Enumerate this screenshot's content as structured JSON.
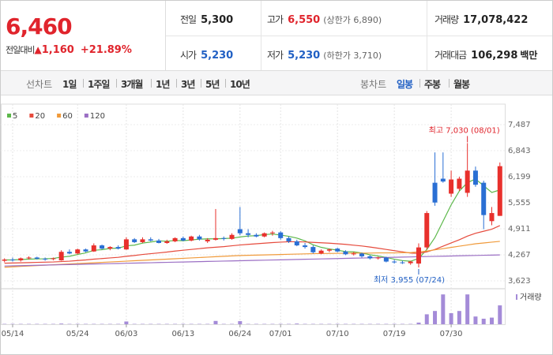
{
  "quote": {
    "price": "6,460",
    "change_label": "전일대비",
    "change": "1,160",
    "change_pct": "+21.89%"
  },
  "stats": [
    [
      {
        "label": "전일",
        "value": "5,300"
      },
      {
        "label": "고가",
        "value": "6,550",
        "note": "(상한가 6,890)"
      },
      {
        "label": "거래량",
        "value": "17,078,422"
      }
    ],
    [
      {
        "label": "시가",
        "value": "5,230"
      },
      {
        "label": "저가",
        "value": "5,230",
        "note": "(하한가 3,710)"
      },
      {
        "label": "거래대금",
        "value": "106,298",
        "unit": "백만"
      }
    ]
  ],
  "tabs": {
    "line_label": "선차트",
    "line_options": [
      "1일",
      "1주일",
      "3개월",
      "1년",
      "3년",
      "5년",
      "10년"
    ],
    "candle_label": "봉차트",
    "candle_options": [
      "일봉",
      "주봉",
      "월봉"
    ],
    "selected": "일봉"
  },
  "chart_data": {
    "type": "candlestick",
    "categories": [
      null,
      "05/14",
      null,
      null,
      null,
      null,
      null,
      null,
      null,
      "05/24",
      null,
      null,
      null,
      null,
      null,
      "06/03",
      null,
      null,
      null,
      null,
      null,
      null,
      "06/13",
      null,
      null,
      null,
      null,
      null,
      null,
      "06/24",
      null,
      null,
      null,
      null,
      "07/01",
      null,
      null,
      null,
      null,
      null,
      null,
      "07/10",
      null,
      null,
      null,
      null,
      null,
      null,
      "07/19",
      null,
      null,
      null,
      null,
      null,
      null,
      "07/30",
      null,
      null,
      null,
      null,
      null,
      null
    ],
    "open": [
      4120,
      4150,
      4130,
      4180,
      4200,
      4170,
      4160,
      4130,
      4340,
      4300,
      4400,
      4350,
      4500,
      4420,
      4460,
      4400,
      4650,
      4580,
      4650,
      4620,
      4560,
      4600,
      4680,
      4620,
      4720,
      4600,
      4640,
      4680,
      4660,
      4900,
      4800,
      4760,
      4720,
      4800,
      4820,
      4680,
      4600,
      4500,
      4460,
      4300,
      4370,
      4420,
      4350,
      4280,
      4300,
      4230,
      4180,
      4200,
      4100,
      4080,
      4060,
      4050,
      4450,
      6050,
      6150,
      5780,
      5900,
      5800,
      6350,
      6050,
      5100,
      5230
    ],
    "high": [
      4180,
      4200,
      4200,
      4230,
      4220,
      4200,
      4200,
      4380,
      4400,
      4420,
      4420,
      4550,
      4520,
      4480,
      4500,
      4700,
      4680,
      4700,
      4700,
      4660,
      4640,
      4700,
      4720,
      4740,
      4760,
      4680,
      5400,
      4720,
      4800,
      5450,
      4900,
      4800,
      4820,
      4860,
      4850,
      4720,
      4640,
      4560,
      4500,
      4400,
      4420,
      4440,
      4380,
      4340,
      4320,
      4260,
      4220,
      4220,
      4140,
      4120,
      4120,
      4550,
      5350,
      6800,
      6800,
      6350,
      6200,
      7030,
      6450,
      6100,
      5450,
      6550
    ],
    "low": [
      4080,
      4100,
      4100,
      4150,
      4150,
      4120,
      4130,
      4120,
      4280,
      4280,
      4330,
      4340,
      4400,
      4380,
      4400,
      4390,
      4560,
      4560,
      4600,
      4550,
      4540,
      4580,
      4600,
      4600,
      4620,
      4560,
      4620,
      4620,
      4640,
      4750,
      4700,
      4700,
      4700,
      4740,
      4640,
      4560,
      4480,
      4420,
      4300,
      4280,
      4330,
      4330,
      4260,
      4250,
      4200,
      4150,
      4150,
      4080,
      4050,
      4040,
      4020,
      3955,
      4400,
      5480,
      6050,
      5700,
      5850,
      5700,
      5950,
      4900,
      5000,
      5230
    ],
    "close": [
      4150,
      4130,
      4180,
      4200,
      4170,
      4160,
      4180,
      4340,
      4300,
      4400,
      4350,
      4500,
      4420,
      4460,
      4420,
      4650,
      4580,
      4650,
      4620,
      4560,
      4600,
      4680,
      4620,
      4720,
      4650,
      4640,
      4680,
      4660,
      4760,
      4800,
      4760,
      4720,
      4800,
      4820,
      4680,
      4600,
      4500,
      4460,
      4330,
      4370,
      4400,
      4350,
      4280,
      4300,
      4230,
      4180,
      4200,
      4100,
      4080,
      4060,
      4100,
      4450,
      5300,
      5560,
      6080,
      6130,
      6150,
      6350,
      6000,
      5250,
      5300,
      6460
    ],
    "up_color": "#e8302c",
    "down_color": "#2a6fd4",
    "series": [
      {
        "name": "5",
        "color": "#5cb84a",
        "values": [
          4140,
          4140,
          4150,
          4160,
          4166,
          4168,
          4178,
          4210,
          4230,
          4276,
          4314,
          4378,
          4394,
          4426,
          4430,
          4490,
          4506,
          4556,
          4584,
          4612,
          4602,
          4622,
          4616,
          4636,
          4654,
          4662,
          4662,
          4670,
          4678,
          4708,
          4732,
          4740,
          4768,
          4780,
          4756,
          4724,
          4680,
          4612,
          4514,
          4452,
          4412,
          4382,
          4346,
          4340,
          4312,
          4268,
          4238,
          4202,
          4158,
          4124,
          4108,
          4178,
          4398,
          4694,
          5098,
          5504,
          5844,
          6054,
          6142,
          5976,
          5810,
          5872
        ]
      },
      {
        "name": "20",
        "color": "#e64a3c",
        "values": [
          4060,
          4065,
          4070,
          4075,
          4080,
          4085,
          4090,
          4100,
          4110,
          4125,
          4140,
          4160,
          4175,
          4190,
          4205,
          4230,
          4250,
          4275,
          4295,
          4315,
          4335,
          4360,
          4380,
          4400,
          4420,
          4440,
          4455,
          4470,
          4490,
          4510,
          4525,
          4540,
          4555,
          4570,
          4580,
          4590,
          4590,
          4585,
          4575,
          4565,
          4555,
          4540,
          4525,
          4505,
          4485,
          4460,
          4430,
          4400,
          4370,
          4340,
          4310,
          4300,
          4340,
          4400,
          4480,
          4560,
          4640,
          4730,
          4800,
          4850,
          4900,
          4990
        ]
      },
      {
        "name": "60",
        "color": "#f09a3a",
        "values": [
          3960,
          3970,
          3980,
          3990,
          4000,
          4010,
          4020,
          4030,
          4040,
          4050,
          4060,
          4070,
          4080,
          4090,
          4100,
          4110,
          4120,
          4130,
          4140,
          4150,
          4160,
          4170,
          4180,
          4190,
          4200,
          4210,
          4220,
          4230,
          4240,
          4250,
          4255,
          4260,
          4265,
          4270,
          4275,
          4280,
          4285,
          4290,
          4295,
          4300,
          4300,
          4305,
          4305,
          4310,
          4310,
          4310,
          4315,
          4315,
          4315,
          4320,
          4320,
          4340,
          4360,
          4390,
          4420,
          4450,
          4480,
          4510,
          4540,
          4560,
          4580,
          4600
        ]
      },
      {
        "name": "120",
        "color": "#9b6fc4",
        "values": [
          3990,
          3995,
          3999,
          4004,
          4008,
          4013,
          4017,
          4022,
          4026,
          4031,
          4035,
          4040,
          4044,
          4049,
          4053,
          4058,
          4062,
          4067,
          4071,
          4076,
          4080,
          4085,
          4089,
          4094,
          4098,
          4103,
          4107,
          4112,
          4116,
          4121,
          4125,
          4130,
          4134,
          4139,
          4143,
          4148,
          4152,
          4157,
          4161,
          4166,
          4170,
          4175,
          4179,
          4184,
          4188,
          4193,
          4197,
          4202,
          4206,
          4211,
          4215,
          4220,
          4224,
          4229,
          4233,
          4238,
          4242,
          4247,
          4251,
          4256,
          4260,
          4265
        ]
      }
    ],
    "volume_name": "거래량",
    "volume_color": "#a48bd8",
    "volume": [
      300000,
      300000,
      300000,
      300000,
      300000,
      300000,
      300000,
      600000,
      300000,
      300000,
      300000,
      300000,
      300000,
      300000,
      300000,
      2500000,
      300000,
      300000,
      300000,
      300000,
      300000,
      300000,
      300000,
      300000,
      300000,
      300000,
      3000000,
      300000,
      300000,
      2800000,
      300000,
      300000,
      300000,
      300000,
      300000,
      300000,
      600000,
      300000,
      300000,
      300000,
      300000,
      300000,
      300000,
      300000,
      300000,
      300000,
      300000,
      300000,
      300000,
      300000,
      300000,
      1500000,
      9000000,
      12000000,
      27000000,
      10000000,
      12000000,
      27000000,
      7000000,
      5000000,
      6000000,
      17078422
    ],
    "volume_ylim": [
      0,
      30000000
    ],
    "ylim": [
      3623,
      7487
    ],
    "yticks": [
      {
        "value": 7487,
        "label": "7,487"
      },
      {
        "value": 6843,
        "label": "6,843"
      },
      {
        "value": 6199,
        "label": "6,199"
      },
      {
        "value": 5555,
        "label": "5,555"
      },
      {
        "value": 4911,
        "label": "4,911"
      },
      {
        "value": 4267,
        "label": "4,267"
      },
      {
        "value": 3623,
        "label": "3,623"
      }
    ],
    "annotations": {
      "high": "최고 7,030 (08/01)",
      "low": "최저 3,955 (07/24)"
    },
    "grid": true
  }
}
